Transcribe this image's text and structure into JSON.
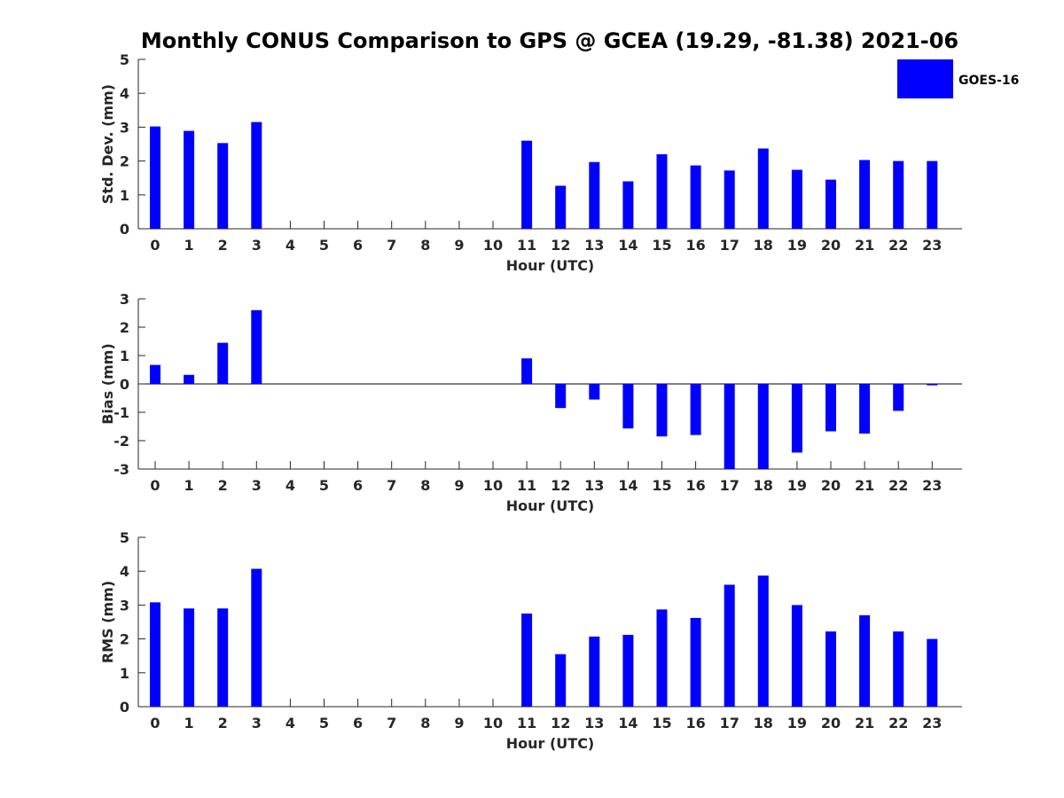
{
  "figure": {
    "title": "Monthly CONUS Comparison to GPS @ GCEA (19.29, -81.38) 2021-06",
    "legend_label": "GOES-16",
    "legend_placement": "top-right",
    "bar_color": "#0000ff"
  },
  "chart_data": [
    {
      "type": "bar",
      "xlabel": "Hour (UTC)",
      "ylabel": "Std. Dev. (mm)",
      "ylim": [
        0,
        5
      ],
      "yticks": [
        0,
        1,
        2,
        3,
        4,
        5
      ],
      "categories": [
        "0",
        "1",
        "2",
        "3",
        "4",
        "5",
        "6",
        "7",
        "8",
        "9",
        "10",
        "11",
        "12",
        "13",
        "14",
        "15",
        "16",
        "17",
        "18",
        "19",
        "20",
        "21",
        "22",
        "23"
      ],
      "series": [
        {
          "name": "GOES-16",
          "values": [
            3.02,
            2.89,
            2.53,
            3.15,
            null,
            null,
            null,
            null,
            null,
            null,
            null,
            2.6,
            1.27,
            1.97,
            1.4,
            2.2,
            1.87,
            1.72,
            2.37,
            1.74,
            1.45,
            2.03,
            2.0,
            2.0
          ]
        }
      ],
      "grid": false
    },
    {
      "type": "bar",
      "xlabel": "Hour (UTC)",
      "ylabel": "Bias (mm)",
      "ylim": [
        -3,
        3
      ],
      "yticks": [
        -3,
        -2,
        -1,
        0,
        1,
        2,
        3
      ],
      "categories": [
        "0",
        "1",
        "2",
        "3",
        "4",
        "5",
        "6",
        "7",
        "8",
        "9",
        "10",
        "11",
        "12",
        "13",
        "14",
        "15",
        "16",
        "17",
        "18",
        "19",
        "20",
        "21",
        "22",
        "23"
      ],
      "series": [
        {
          "name": "GOES-16",
          "values": [
            0.67,
            0.32,
            1.45,
            2.6,
            null,
            null,
            null,
            null,
            null,
            null,
            null,
            0.9,
            -0.85,
            -0.55,
            -1.57,
            -1.85,
            -1.8,
            -3.0,
            -3.0,
            -2.42,
            -1.67,
            -1.75,
            -0.95,
            -0.05
          ]
        }
      ],
      "grid": false
    },
    {
      "type": "bar",
      "xlabel": "Hour (UTC)",
      "ylabel": "RMS (mm)",
      "ylim": [
        0,
        5
      ],
      "yticks": [
        0,
        1,
        2,
        3,
        4,
        5
      ],
      "categories": [
        "0",
        "1",
        "2",
        "3",
        "4",
        "5",
        "6",
        "7",
        "8",
        "9",
        "10",
        "11",
        "12",
        "13",
        "14",
        "15",
        "16",
        "17",
        "18",
        "19",
        "20",
        "21",
        "22",
        "23"
      ],
      "series": [
        {
          "name": "GOES-16",
          "values": [
            3.08,
            2.9,
            2.9,
            4.07,
            null,
            null,
            null,
            null,
            null,
            null,
            null,
            2.75,
            1.55,
            2.07,
            2.12,
            2.87,
            2.62,
            3.6,
            3.87,
            3.0,
            2.22,
            2.7,
            2.22,
            2.0
          ]
        }
      ],
      "grid": false
    }
  ]
}
